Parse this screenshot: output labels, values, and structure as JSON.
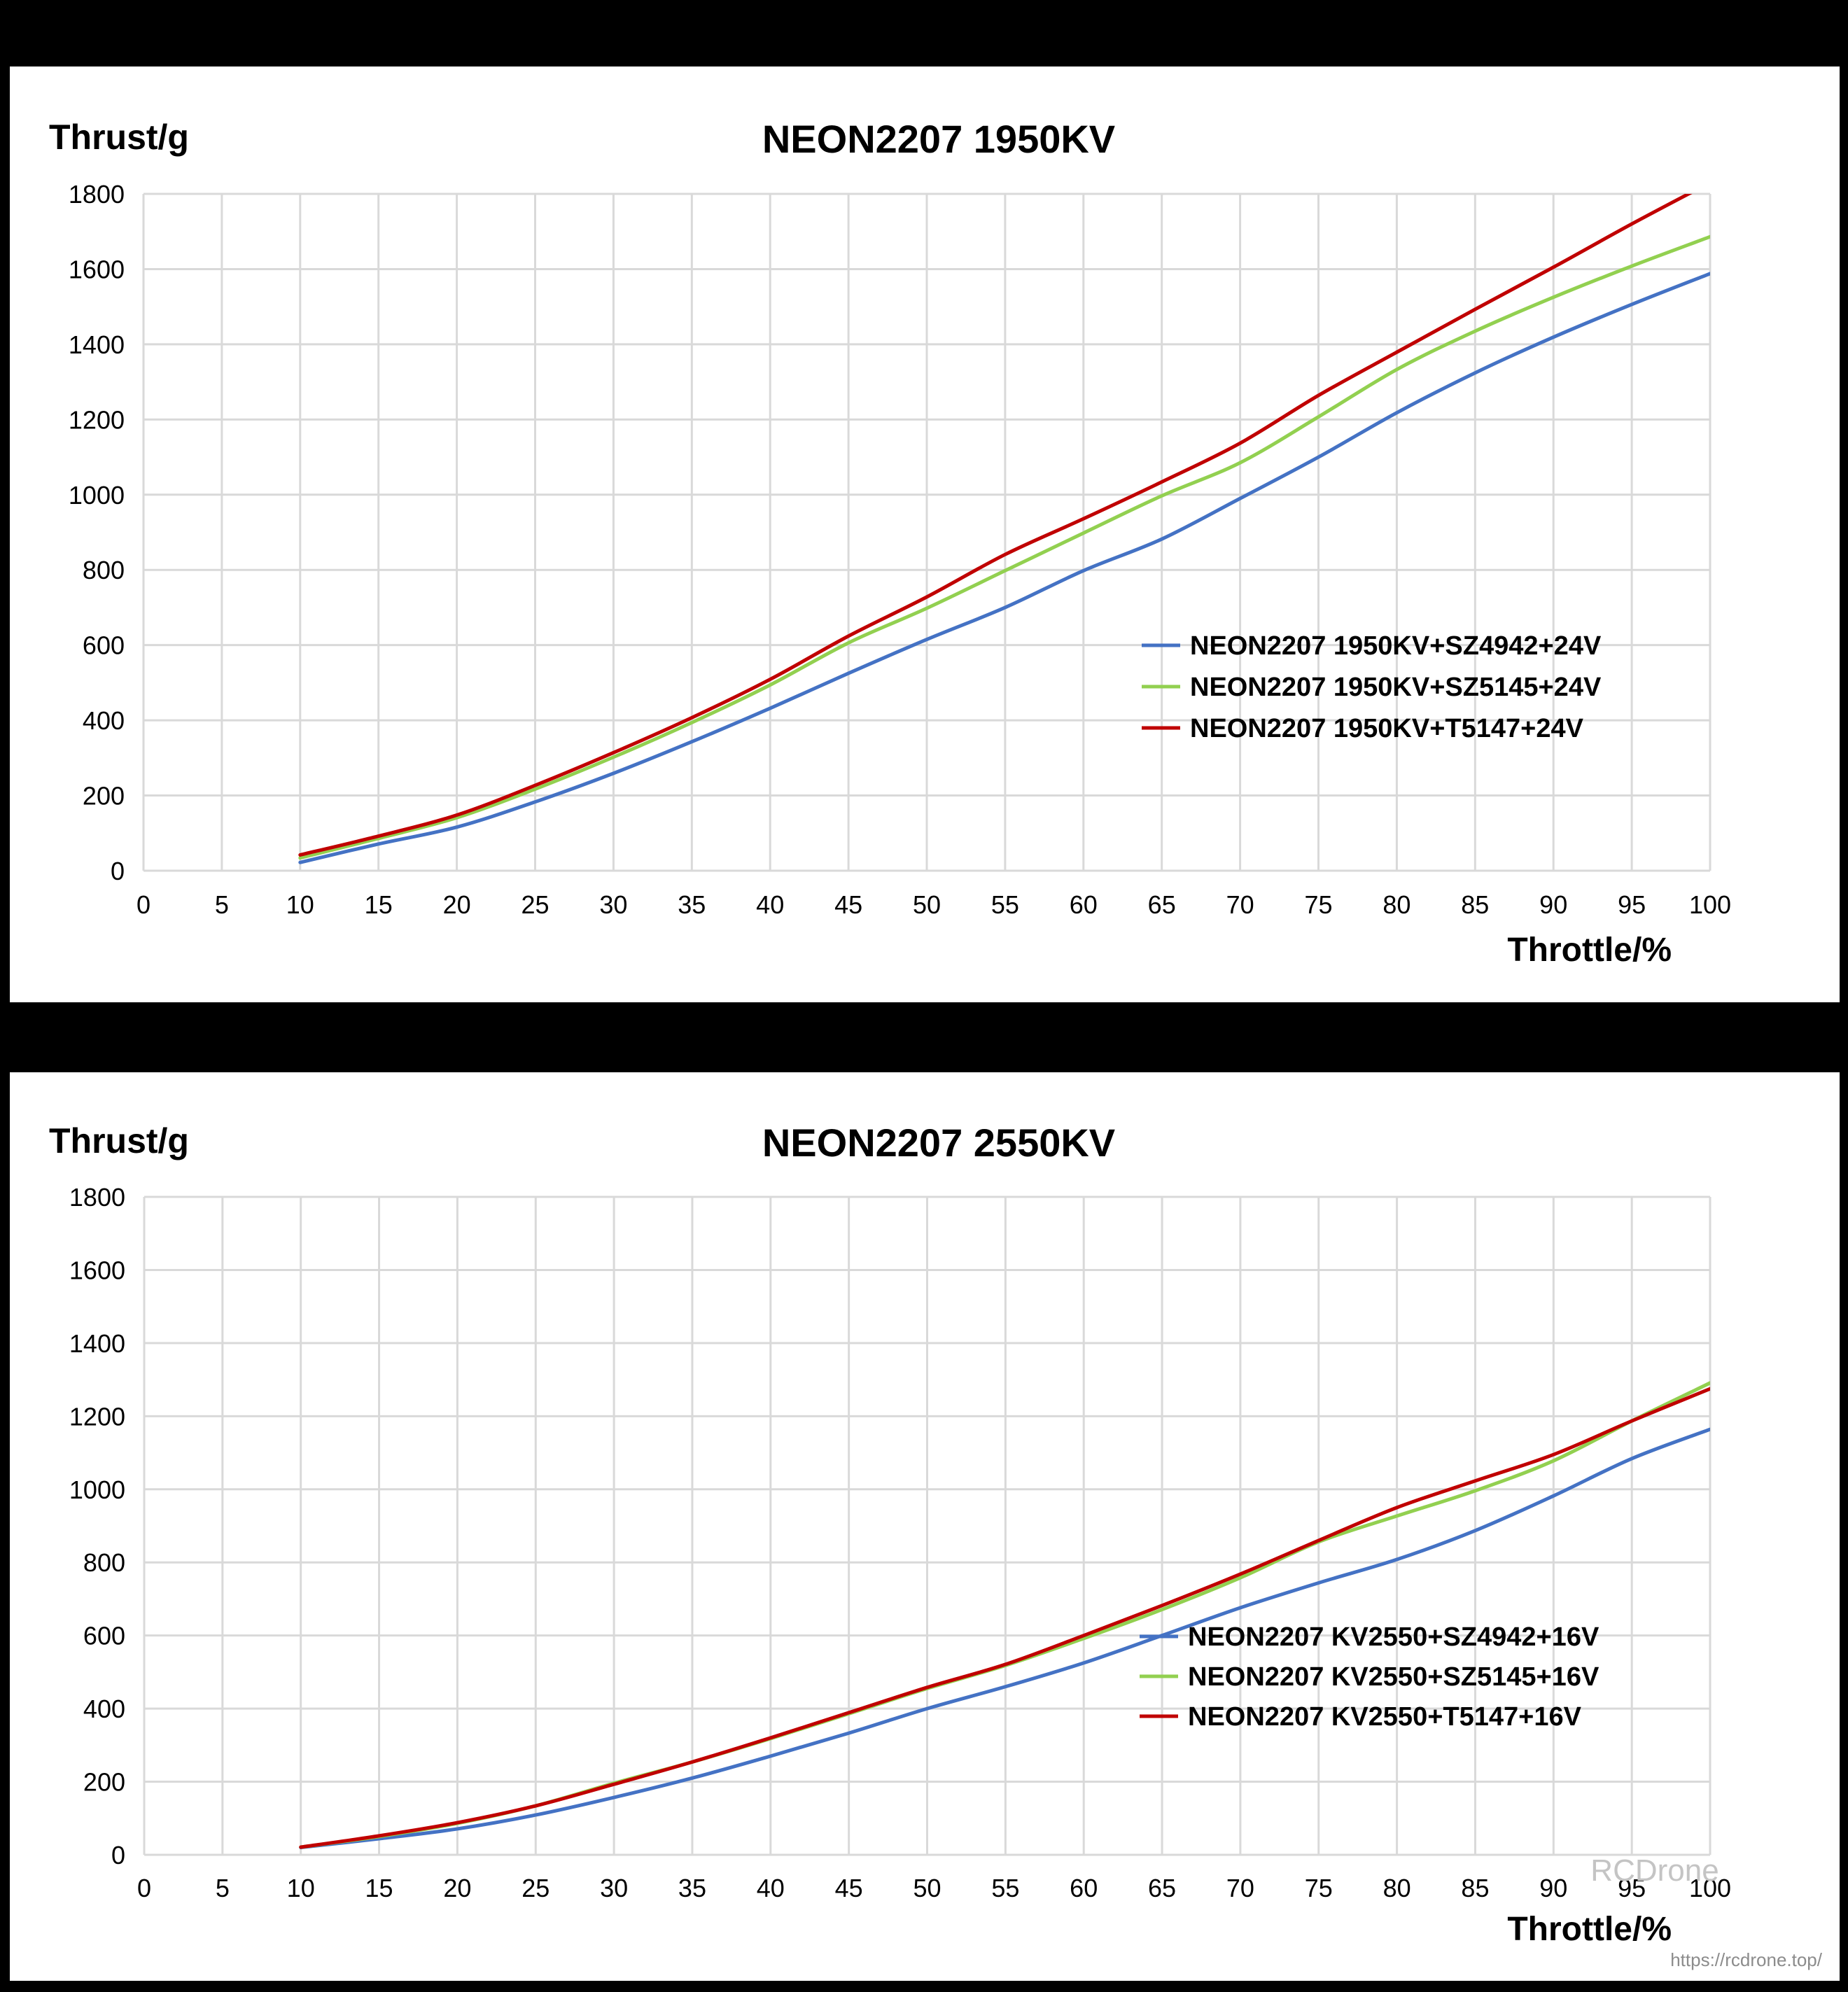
{
  "chart_data": [
    {
      "type": "line",
      "title": "NEON2207 1950KV",
      "xlabel": "Throttle/%",
      "ylabel": "Thrust/g",
      "xlim": [
        0,
        100
      ],
      "ylim": [
        0,
        1800
      ],
      "x_ticks": [
        0,
        5,
        10,
        15,
        20,
        25,
        30,
        35,
        40,
        45,
        50,
        55,
        60,
        65,
        70,
        75,
        80,
        85,
        90,
        95,
        100
      ],
      "y_ticks": [
        0,
        200,
        400,
        600,
        800,
        1000,
        1200,
        1400,
        1600,
        1800
      ],
      "grid": true,
      "legend_position": "inside-right-middle",
      "x": [
        10,
        15,
        20,
        25,
        30,
        35,
        40,
        45,
        50,
        55,
        60,
        65,
        70,
        75,
        80,
        85,
        90,
        95,
        100
      ],
      "series": [
        {
          "name": "NEON2207 1950KV+SZ4942+24V",
          "color": "#4472C4",
          "values": [
            22,
            71,
            116,
            183,
            259,
            343,
            432,
            525,
            615,
            700,
            798,
            882,
            990,
            1100,
            1218,
            1324,
            1419,
            1506,
            1588
          ]
        },
        {
          "name": "NEON2207 1950KV+SZ5145+24V",
          "color": "#92D050",
          "values": [
            34,
            86,
            141,
            217,
            302,
            394,
            494,
            606,
            698,
            798,
            898,
            997,
            1085,
            1207,
            1333,
            1435,
            1525,
            1608,
            1686
          ]
        },
        {
          "name": "NEON2207 1950KV+T5147+24V",
          "color": "#C00000",
          "values": [
            42,
            92,
            148,
            227,
            314,
            407,
            509,
            624,
            728,
            841,
            936,
            1034,
            1137,
            1264,
            1379,
            1493,
            1605,
            1720,
            1830
          ]
        }
      ]
    },
    {
      "type": "line",
      "title": "NEON2207 2550KV",
      "xlabel": "Throttle/%",
      "ylabel": "Thrust/g",
      "xlim": [
        0,
        100
      ],
      "ylim": [
        0,
        1800
      ],
      "x_ticks": [
        0,
        5,
        10,
        15,
        20,
        25,
        30,
        35,
        40,
        45,
        50,
        55,
        60,
        65,
        70,
        75,
        80,
        85,
        90,
        95,
        100
      ],
      "y_ticks": [
        0,
        200,
        400,
        600,
        800,
        1000,
        1200,
        1400,
        1600,
        1800
      ],
      "grid": true,
      "legend_position": "inside-right-lower",
      "x": [
        10,
        15,
        20,
        25,
        30,
        35,
        40,
        45,
        50,
        55,
        60,
        65,
        70,
        75,
        80,
        85,
        90,
        95,
        100
      ],
      "series": [
        {
          "name": "NEON2207 KV2550+SZ4942+16V",
          "color": "#4472C4",
          "values": [
            20,
            44,
            71,
            109,
            157,
            210,
            270,
            333,
            400,
            460,
            525,
            600,
            676,
            744,
            808,
            887,
            982,
            1084,
            1164
          ]
        },
        {
          "name": "NEON2207 KV2550+SZ5145+16V",
          "color": "#92D050",
          "values": [
            21,
            50,
            86,
            134,
            196,
            254,
            318,
            386,
            455,
            518,
            592,
            671,
            758,
            856,
            927,
            996,
            1078,
            1187,
            1291
          ]
        },
        {
          "name": "NEON2207 KV2550+T5147+16V",
          "color": "#C00000",
          "values": [
            21,
            52,
            88,
            134,
            193,
            254,
            320,
            389,
            458,
            521,
            600,
            682,
            768,
            860,
            950,
            1023,
            1095,
            1187,
            1275
          ]
        }
      ]
    }
  ],
  "watermark": {
    "brand": "RCDrone",
    "url": "https://rcdrone.top/"
  }
}
